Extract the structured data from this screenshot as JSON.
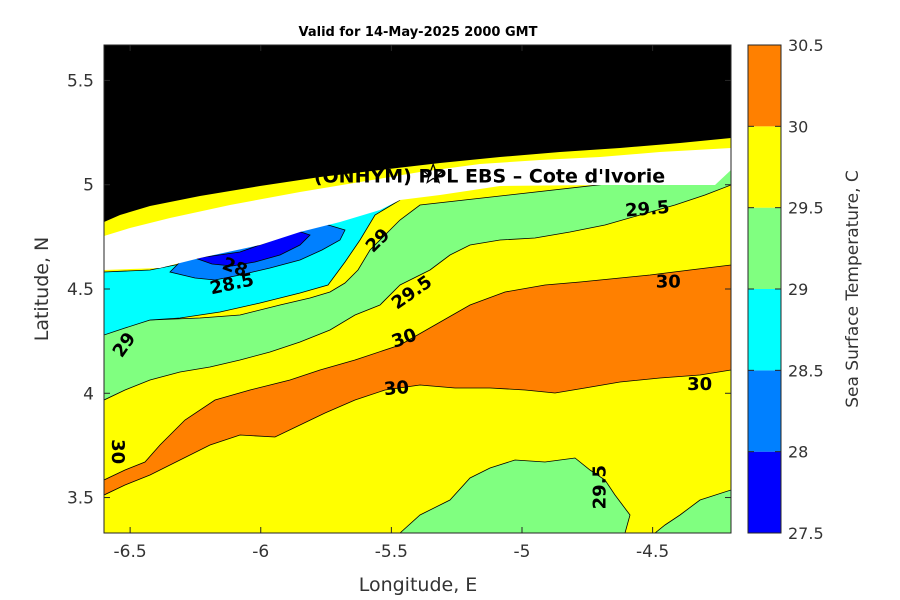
{
  "chart_data": {
    "type": "contourf",
    "title": "Valid for 14-May-2025 2000 GMT",
    "xlabel": "Longitude, E",
    "ylabel": "Latitude, N",
    "xlim": [
      -6.6,
      -4.2
    ],
    "ylim": [
      3.33,
      5.67
    ],
    "xticks": [
      -6.5,
      -6,
      -5.5,
      -5,
      -4.5
    ],
    "yticks": [
      3.5,
      4,
      4.5,
      5,
      5.5
    ],
    "colorbar": {
      "label": "Sea Surface Temperature, C",
      "levels": [
        27.5,
        28,
        28.5,
        29,
        29.5,
        30,
        30.5
      ],
      "tick_labels": [
        "27.5",
        "28",
        "28.5",
        "29",
        "29.5",
        "30",
        "30.5"
      ],
      "colors": [
        "#0000ff",
        "#0080ff",
        "#00ffff",
        "#80ff80",
        "#ffff00",
        "#ff8000"
      ]
    },
    "land_color": "#000000",
    "nodata_color": "#ffffff",
    "station": {
      "label": "(ONHYM) PPL EBS – Cote d'Ivorie",
      "lon": -5.34,
      "lat": 5.05,
      "marker": "star"
    },
    "contour_labels": [
      {
        "text": "30",
        "lon": -6.55,
        "lat": 3.72,
        "angle": 90
      },
      {
        "text": "29",
        "lon": -6.52,
        "lat": 4.23,
        "angle": -55
      },
      {
        "text": "28.5",
        "lon": -6.11,
        "lat": 4.52,
        "angle": -12
      },
      {
        "text": "28",
        "lon": -6.1,
        "lat": 4.6,
        "angle": 20
      },
      {
        "text": "29",
        "lon": -5.55,
        "lat": 4.73,
        "angle": -45
      },
      {
        "text": "29.5",
        "lon": -5.42,
        "lat": 4.48,
        "angle": -35
      },
      {
        "text": "30",
        "lon": -5.45,
        "lat": 4.26,
        "angle": -20
      },
      {
        "text": "30",
        "lon": -5.48,
        "lat": 4.02,
        "angle": -5
      },
      {
        "text": "29.5",
        "lon": -4.52,
        "lat": 4.88,
        "angle": -5
      },
      {
        "text": "30",
        "lon": -4.44,
        "lat": 4.53,
        "angle": 0
      },
      {
        "text": "30",
        "lon": -4.32,
        "lat": 4.04,
        "angle": 0
      },
      {
        "text": "29.5",
        "lon": -4.7,
        "lat": 3.55,
        "angle": -90
      }
    ]
  }
}
